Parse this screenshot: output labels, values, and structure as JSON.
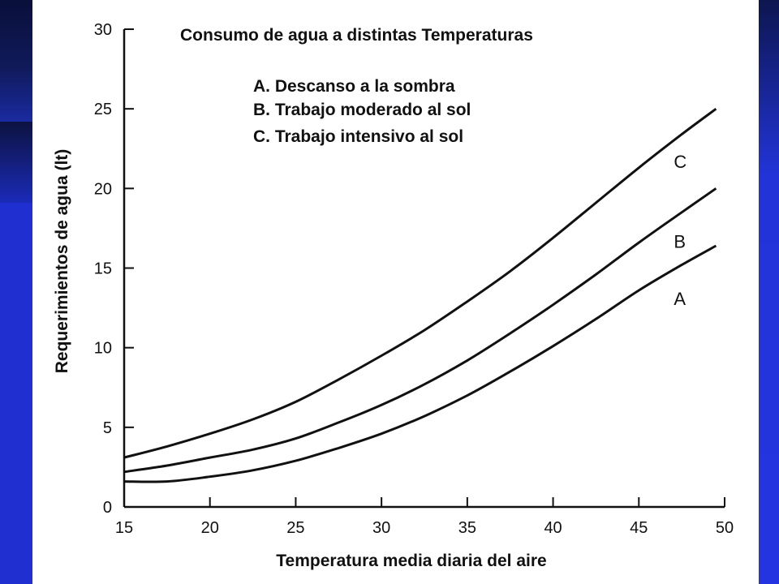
{
  "chart_data": {
    "type": "line",
    "title": "Consumo de agua a distintas Temperaturas",
    "xlabel": "Temperatura media diaria del aire",
    "ylabel": "Requerimientos de agua (lt)",
    "xlim": [
      15,
      50
    ],
    "ylim": [
      0,
      30
    ],
    "x_ticks": [
      15,
      20,
      25,
      30,
      35,
      40,
      45,
      50
    ],
    "y_ticks": [
      0,
      5,
      10,
      15,
      20,
      25,
      30
    ],
    "legend": [
      "A. Descanso a la sombra",
      "B. Trabajo moderado al sol",
      "C. Trabajo intensivo al sol"
    ],
    "series": [
      {
        "name": "A",
        "x": [
          15,
          17.5,
          20,
          22.5,
          25,
          27.5,
          30,
          32.5,
          35,
          37.5,
          40,
          42.5,
          45,
          47.5,
          49.5
        ],
        "values": [
          1.6,
          1.6,
          1.9,
          2.3,
          2.9,
          3.7,
          4.6,
          5.7,
          7.0,
          8.5,
          10.1,
          11.8,
          13.6,
          15.2,
          16.4
        ]
      },
      {
        "name": "B",
        "x": [
          15,
          17.5,
          20,
          22.5,
          25,
          27.5,
          30,
          32.5,
          35,
          37.5,
          40,
          42.5,
          45,
          47.5,
          49.5
        ],
        "values": [
          2.2,
          2.6,
          3.1,
          3.6,
          4.3,
          5.3,
          6.4,
          7.7,
          9.2,
          10.9,
          12.7,
          14.6,
          16.6,
          18.5,
          20.0
        ]
      },
      {
        "name": "C",
        "x": [
          15,
          17.5,
          20,
          22.5,
          25,
          27.5,
          30,
          32.5,
          35,
          37.5,
          40,
          42.5,
          45,
          47.5,
          49.5
        ],
        "values": [
          3.1,
          3.8,
          4.6,
          5.5,
          6.6,
          8.0,
          9.5,
          11.1,
          12.9,
          14.8,
          16.9,
          19.1,
          21.3,
          23.4,
          25.0
        ]
      }
    ],
    "line_color": "#111111",
    "grid": false
  }
}
